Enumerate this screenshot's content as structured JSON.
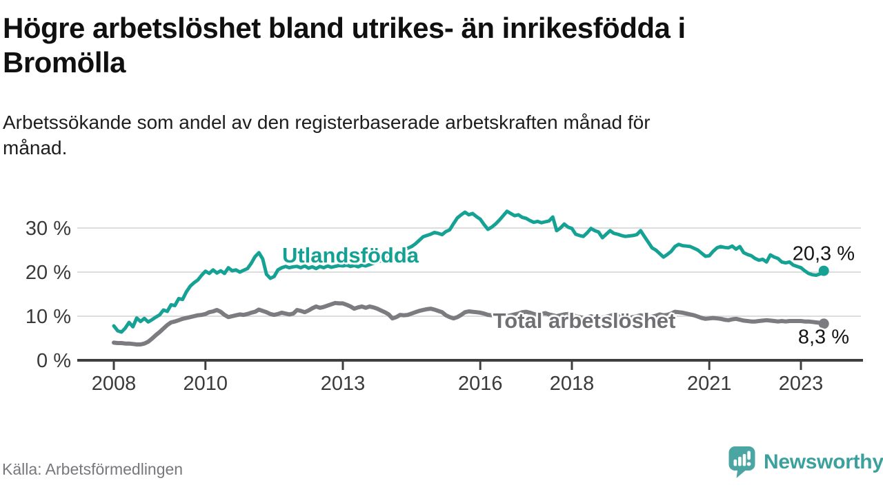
{
  "title_lines": [
    "Högre arbetslöshet bland utrikes- än inrikesfödda i",
    "Bromölla"
  ],
  "subtitle_lines": [
    "Arbetssökande som andel av den registerbaserade arbetskraften månad för",
    "månad."
  ],
  "source": "Källa: Arbetsförmedlingen",
  "logo": {
    "name": "Newsworthy",
    "icon": "newsworthy-speech-bubble-bar-chart-icon"
  },
  "colors": {
    "foreign_born_line": "#15a294",
    "total_line": "#7c7c80",
    "total_label": "#6f6f74",
    "grid": "#dcdcdc",
    "axis": "#3f3f3f",
    "tick_text": "#3a3a3a",
    "end_label_text": "#141414",
    "logo_teal": "#4ba5a2",
    "logo_text_teal": "#3ba19d"
  },
  "chart_data": {
    "type": "line",
    "title": "Högre arbetslöshet bland utrikes- än inrikesfödda i Bromölla",
    "subtitle": "Arbetssökande som andel av den registerbaserade arbetskraften månad för månad.",
    "x_start_year": 2008,
    "x_points_per_year": 12,
    "x_end": "2023-07",
    "x_tick_years": [
      2008,
      2010,
      2013,
      2016,
      2018,
      2021,
      2023
    ],
    "y_ticks": [
      {
        "value": 0,
        "label": "0 %"
      },
      {
        "value": 10,
        "label": "10 %"
      },
      {
        "value": 20,
        "label": "20 %"
      },
      {
        "value": 30,
        "label": "30 %"
      }
    ],
    "ylim": [
      0,
      35
    ],
    "grid": true,
    "legend_position": "inline-labels",
    "series": [
      {
        "id": "utlandsfodda",
        "name": "Utlandsfödda",
        "color": "#15a294",
        "end_label": "20,3 %",
        "end_value": 20.3,
        "values": [
          7.8,
          6.7,
          6.4,
          7.3,
          8.6,
          7.6,
          9.6,
          8.8,
          9.5,
          8.7,
          9.2,
          9.8,
          10.3,
          11.4,
          11.1,
          12.6,
          12.4,
          14.0,
          13.8,
          15.5,
          16.8,
          17.6,
          18.2,
          19.3,
          20.2,
          19.7,
          20.5,
          19.8,
          20.3,
          19.7,
          21.0,
          20.3,
          20.5,
          20.0,
          20.4,
          20.8,
          22.0,
          23.5,
          24.4,
          23.0,
          19.5,
          18.6,
          19.0,
          20.5,
          21.0,
          21.3,
          21.0,
          21.2,
          21.3,
          21.0,
          21.4,
          20.9,
          21.2,
          20.8,
          21.3,
          21.0,
          21.4,
          21.1,
          21.3,
          21.5,
          21.4,
          21.6,
          21.3,
          21.5,
          21.2,
          21.6,
          21.4,
          21.7,
          22.0,
          22.3,
          22.6,
          23.0,
          23.4,
          23.8,
          24.2,
          24.6,
          25.0,
          25.4,
          25.8,
          26.4,
          27.2,
          28.0,
          28.3,
          28.6,
          29.0,
          28.8,
          28.5,
          29.2,
          29.6,
          31.0,
          32.3,
          33.0,
          33.6,
          33.0,
          33.3,
          32.6,
          32.0,
          30.8,
          29.7,
          30.2,
          30.9,
          31.8,
          32.8,
          33.8,
          33.3,
          32.8,
          33.0,
          32.4,
          32.2,
          31.7,
          31.3,
          31.5,
          31.2,
          31.4,
          31.6,
          32.5,
          29.4,
          30.0,
          30.9,
          30.2,
          29.9,
          28.6,
          28.3,
          28.1,
          28.9,
          29.9,
          29.4,
          29.1,
          27.8,
          28.6,
          29.4,
          28.8,
          28.6,
          28.3,
          28.1,
          28.2,
          28.3,
          28.5,
          29.4,
          28.1,
          26.8,
          25.5,
          25.0,
          24.2,
          23.4,
          24.0,
          24.7,
          25.8,
          26.3,
          26.0,
          25.9,
          25.8,
          25.4,
          25.0,
          24.3,
          23.6,
          23.7,
          24.7,
          25.5,
          25.8,
          25.6,
          25.5,
          25.9,
          25.2,
          25.8,
          24.4,
          24.0,
          23.7,
          23.1,
          22.7,
          22.9,
          22.3,
          23.9,
          23.4,
          23.1,
          22.3,
          22.1,
          22.3,
          21.6,
          21.3,
          21.0,
          20.3,
          19.7,
          19.4,
          19.3,
          19.6,
          20.3
        ]
      },
      {
        "id": "total",
        "name": "Total arbetslöshet",
        "color": "#7c7c80",
        "end_label": "8,3 %",
        "end_value": 8.3,
        "values": [
          4.0,
          3.9,
          3.9,
          3.8,
          3.8,
          3.7,
          3.6,
          3.6,
          3.8,
          4.2,
          4.9,
          5.7,
          6.4,
          7.2,
          8.0,
          8.6,
          8.8,
          9.1,
          9.4,
          9.6,
          9.8,
          10.0,
          10.2,
          10.3,
          10.5,
          10.9,
          11.1,
          11.4,
          11.0,
          10.3,
          9.8,
          10.0,
          10.2,
          10.4,
          10.3,
          10.5,
          10.8,
          11.0,
          11.5,
          11.2,
          10.9,
          10.5,
          10.3,
          10.5,
          10.8,
          10.6,
          10.4,
          10.6,
          11.4,
          11.2,
          10.9,
          11.3,
          11.8,
          12.2,
          11.9,
          12.1,
          12.4,
          12.7,
          13.0,
          12.9,
          12.9,
          12.6,
          12.2,
          11.7,
          12.0,
          12.2,
          11.9,
          12.2,
          12.0,
          11.7,
          11.3,
          10.9,
          10.4,
          9.5,
          9.8,
          10.3,
          10.2,
          10.3,
          10.6,
          10.9,
          11.2,
          11.4,
          11.6,
          11.7,
          11.5,
          11.2,
          10.9,
          10.2,
          9.8,
          9.5,
          9.8,
          10.3,
          10.9,
          11.1,
          11.0,
          10.9,
          10.8,
          10.6,
          10.3,
          10.2,
          10.4,
          10.5,
          10.2,
          10.0,
          10.2,
          10.4,
          10.6,
          10.9,
          11.0,
          10.8,
          10.5,
          10.3,
          10.5,
          10.7,
          10.4,
          10.2,
          10.0,
          10.2,
          10.4,
          10.5,
          10.3,
          10.0,
          9.8,
          9.6,
          9.8,
          10.0,
          9.7,
          9.5,
          9.7,
          9.9,
          10.1,
          10.3,
          10.1,
          9.9,
          9.7,
          9.6,
          9.8,
          10.0,
          10.2,
          10.0,
          9.8,
          9.9,
          10.1,
          10.4,
          10.2,
          10.3,
          10.6,
          11.0,
          10.9,
          10.8,
          10.6,
          10.4,
          10.2,
          9.9,
          9.6,
          9.4,
          9.5,
          9.6,
          9.5,
          9.4,
          9.2,
          9.1,
          9.3,
          9.4,
          9.2,
          9.0,
          8.9,
          8.8,
          8.8,
          8.9,
          9.0,
          9.1,
          9.0,
          8.9,
          8.8,
          8.9,
          8.8,
          8.9,
          8.9,
          8.9,
          8.9,
          8.8,
          8.8,
          8.7,
          8.6,
          8.5,
          8.3
        ]
      }
    ]
  }
}
